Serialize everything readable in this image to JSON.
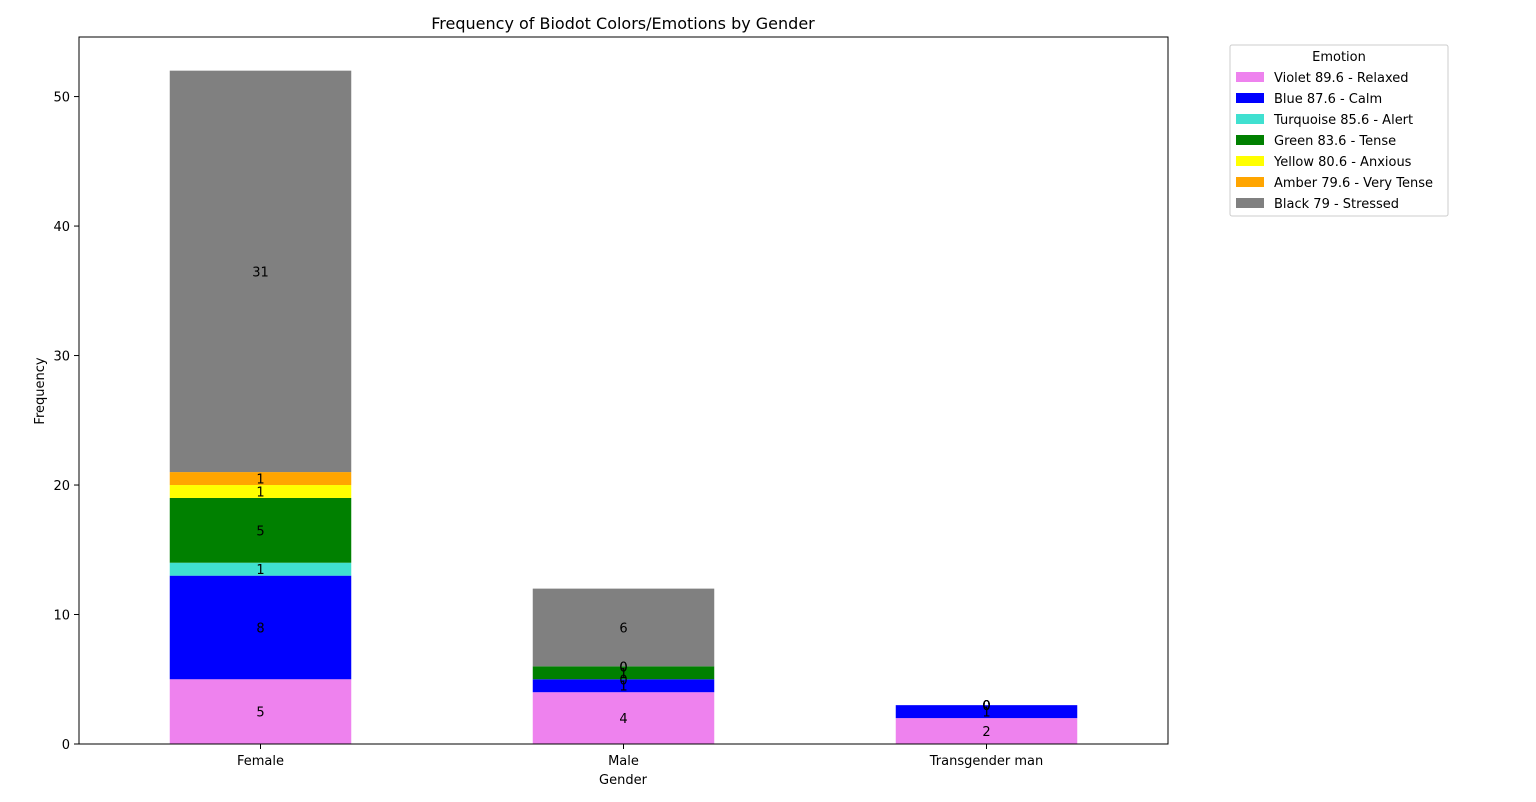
{
  "chart_data": {
    "type": "bar",
    "stacked": true,
    "title": "Frequency of Biodot Colors/Emotions by Gender",
    "xlabel": "Gender",
    "ylabel": "Frequency",
    "categories": [
      "Female",
      "Male",
      "Transgender man"
    ],
    "ylim": [
      0,
      54.6
    ],
    "yticks": [
      0,
      10,
      20,
      30,
      40,
      50
    ],
    "grid": false,
    "legend": {
      "title": "Emotion",
      "placement": "outside-top-right"
    },
    "series": [
      {
        "name": "Violet 89.6 - Relaxed",
        "color": "#ee82ee",
        "values": [
          5,
          4,
          2
        ]
      },
      {
        "name": "Blue 87.6 - Calm",
        "color": "#0000ff",
        "values": [
          8,
          1,
          1
        ]
      },
      {
        "name": "Turquoise 85.6 - Alert",
        "color": "#40e0d0",
        "values": [
          1,
          0,
          0
        ]
      },
      {
        "name": "Green 83.6 - Tense",
        "color": "#008000",
        "values": [
          5,
          1,
          0
        ]
      },
      {
        "name": "Yellow 80.6 - Anxious",
        "color": "#ffff00",
        "values": [
          1,
          0,
          0
        ]
      },
      {
        "name": "Amber 79.6 - Very Tense",
        "color": "#ffa500",
        "values": [
          1,
          0,
          0
        ]
      },
      {
        "name": "Black 79 - Stressed",
        "color": "#808080",
        "values": [
          31,
          6,
          0
        ]
      }
    ]
  }
}
